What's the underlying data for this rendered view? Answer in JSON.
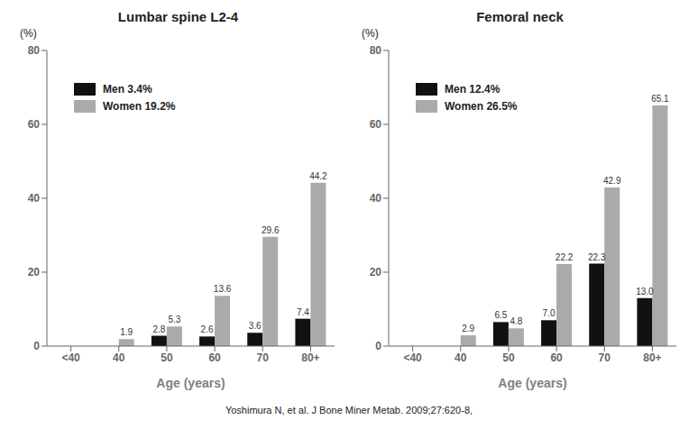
{
  "chart_data": [
    {
      "type": "bar",
      "title": "Lumbar spine L2-4",
      "x_label": "Age (years)",
      "y_label": "(%)",
      "categories": [
        "<40",
        "40",
        "50",
        "60",
        "70",
        "80+"
      ],
      "series": [
        {
          "name": "Men 3.4%",
          "color": "#111111",
          "values": [
            0,
            0,
            2.8,
            2.6,
            3.6,
            7.4
          ],
          "value_labels": [
            null,
            null,
            "2.8",
            "2.6",
            "3.6",
            "7.4"
          ]
        },
        {
          "name": "Women 19.2%",
          "color": "#aaaaaa",
          "values": [
            0,
            1.9,
            5.3,
            13.6,
            29.6,
            44.2
          ],
          "value_labels": [
            null,
            "1.9",
            "5.3",
            "13.6",
            "29.6",
            "44.2"
          ]
        }
      ],
      "ylim": [
        0,
        80
      ],
      "yticks": [
        0,
        20,
        40,
        60,
        80
      ],
      "grid": false,
      "legend": "upper left",
      "data_labels": true
    },
    {
      "type": "bar",
      "title": "Femoral neck",
      "x_label": "Age (years)",
      "y_label": "(%)",
      "categories": [
        "<40",
        "40",
        "50",
        "60",
        "70",
        "80+"
      ],
      "series": [
        {
          "name": "Men 12.4%",
          "color": "#111111",
          "values": [
            0,
            0,
            6.5,
            7.0,
            22.3,
            13.0
          ],
          "value_labels": [
            null,
            null,
            "6.5",
            "7.0",
            "22.3",
            "13.0"
          ]
        },
        {
          "name": "Women 26.5%",
          "color": "#aaaaaa",
          "values": [
            0,
            2.9,
            4.8,
            22.2,
            42.9,
            65.1
          ],
          "value_labels": [
            null,
            "2.9",
            "4.8",
            "22.2",
            "42.9",
            "65.1"
          ]
        }
      ],
      "ylim": [
        0,
        80
      ],
      "yticks": [
        0,
        20,
        40,
        60,
        80
      ],
      "grid": false,
      "legend": "upper left",
      "data_labels": true
    }
  ],
  "footer": "Yoshimura N, et al. J Bone Miner Metab. 2009;27:620-8,"
}
